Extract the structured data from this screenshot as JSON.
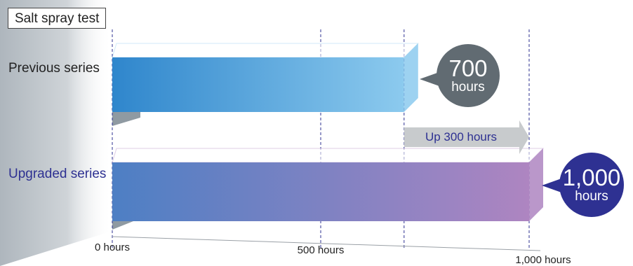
{
  "title": "Salt spray test",
  "chart_data": {
    "type": "bar",
    "orientation": "horizontal",
    "categories": [
      "Previous series",
      "Upgraded series"
    ],
    "values": [
      700,
      1000
    ],
    "value_labels": [
      {
        "number": "700",
        "unit": "hours"
      },
      {
        "number": "1,000",
        "unit": "hours"
      }
    ],
    "xlim": [
      0,
      1000
    ],
    "x_ticks": [
      {
        "value": 0,
        "label": "0 hours"
      },
      {
        "value": 500,
        "label": "500 hours"
      },
      {
        "value": 1000,
        "label": "1,000 hours"
      }
    ],
    "annotation": {
      "text": "Up 300 hours",
      "from": 700,
      "to": 1000
    },
    "grid": "dashed vertical lines at ticks",
    "legend": "none"
  },
  "colors": {
    "previous_bar_start": "#2f86cc",
    "previous_bar_end": "#8ccaee",
    "upgraded_bar_start": "#4d7fc4",
    "upgraded_bar_end": "#ae85c1",
    "previous_badge": "#616b72",
    "upgraded_badge": "#2e3192",
    "upgraded_label": "#2e3192",
    "annotation_arrow": "#c8cbcd",
    "grid_line": "#2e3192"
  }
}
